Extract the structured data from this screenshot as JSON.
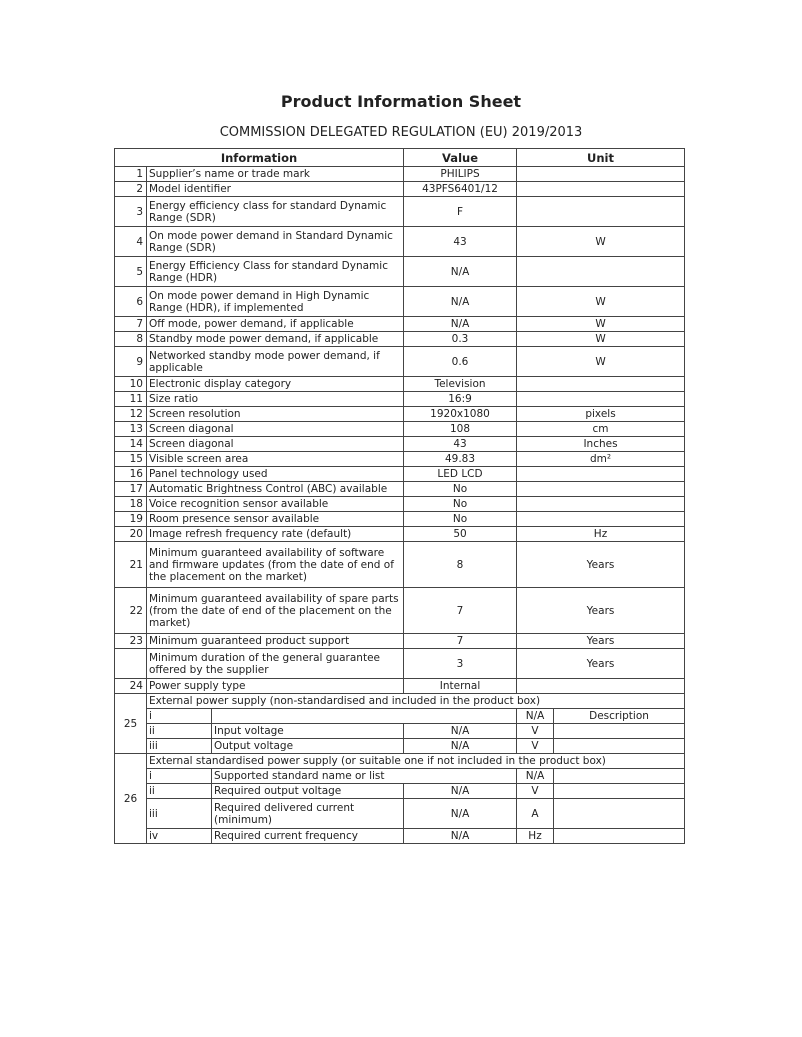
{
  "title": "Product Information Sheet",
  "subtitle": "COMMISSION DELEGATED REGULATION (EU) 2019/2013",
  "headers": {
    "information": "Information",
    "value": "Value",
    "unit": "Unit"
  },
  "rows": [
    {
      "num": "1",
      "overlay": "PHILIPS",
      "label": "Supplier’s name or trade mark",
      "value": "",
      "unit": "",
      "h": "r1"
    },
    {
      "num": "2",
      "overlay": "43PFS6401/12",
      "label": "Model identifier",
      "value": "",
      "unit": "",
      "h": "r1"
    },
    {
      "num": "3",
      "overlay": "",
      "label": "Energy efficiency class for standard Dynamic Range (SDR)",
      "value": "F",
      "unit": "",
      "h": "r2"
    },
    {
      "num": "4",
      "overlay": "43",
      "label": "On mode power demand in Standard Dynamic Range (SDR)",
      "value": "",
      "unit": "W",
      "h": "r2"
    },
    {
      "num": "5",
      "overlay": "N/A",
      "label": "Energy Efficiency Class for standard Dynamic Range (HDR)",
      "value": "",
      "unit": "",
      "h": "r2"
    },
    {
      "num": "6",
      "overlay": "N/A",
      "label": "On mode power demand in High Dynamic Range (HDR), if implemented",
      "value": "",
      "unit": "W",
      "h": "r2"
    },
    {
      "num": "7",
      "overlay": "N/A",
      "label": "Off mode, power demand, if applicable",
      "value": "",
      "unit": "W",
      "h": "r1"
    },
    {
      "num": "8",
      "overlay": "0.3",
      "label": "Standby mode power demand, if applicable",
      "value": "",
      "unit": "W",
      "h": "r1"
    },
    {
      "num": "9",
      "overlay": "0.6",
      "label": "Networked standby mode power demand, if applicable",
      "value": "",
      "unit": "W",
      "h": "r2"
    },
    {
      "num": "10",
      "overlay": "Television",
      "label": "Electronic display category",
      "value": "",
      "unit": "",
      "h": "r1"
    },
    {
      "num": "11",
      "overlay": "16:9",
      "label": "Size ratio",
      "value": "",
      "unit": "",
      "h": "r1"
    },
    {
      "num": "12",
      "overlay": "1920x1080",
      "label": "Screen resolution",
      "value": "",
      "unit": "pixels",
      "h": "r1"
    },
    {
      "num": "13",
      "overlay": "108",
      "label": "Screen diagonal",
      "value": "",
      "unit": "cm",
      "h": "r1"
    },
    {
      "num": "14",
      "overlay": "43",
      "label": "Screen diagonal",
      "value": "",
      "unit": "Inches",
      "h": "r1"
    },
    {
      "num": "15",
      "overlay": "49.83",
      "label": "Visible screen area",
      "value": "",
      "unit": "dm²",
      "h": "r1"
    },
    {
      "num": "16",
      "overlay": "LED LCD",
      "label": "Panel technology used",
      "value": "",
      "unit": "",
      "h": "r1"
    },
    {
      "num": "17",
      "overlay": "No",
      "label": "Automatic Brightness Control (ABC) available",
      "value": "",
      "unit": "",
      "h": "r1"
    },
    {
      "num": "18",
      "overlay": "No",
      "label": "Voice recognition sensor available",
      "value": "",
      "unit": "",
      "h": "r1"
    },
    {
      "num": "19",
      "overlay": "No",
      "label": "Room presence sensor available",
      "value": "",
      "unit": "",
      "h": "r1"
    },
    {
      "num": "20",
      "overlay": "50",
      "label": "Image refresh frequency rate (default)",
      "value": "",
      "unit": "Hz",
      "h": "r1"
    },
    {
      "num": "21",
      "overlay": "",
      "label": "Minimum guaranteed availability of software and firmware updates (from the date of end of the placement on the market)",
      "value": "8",
      "unit": "Years",
      "h": "r3"
    },
    {
      "num": "22",
      "overlay": "",
      "label": "Minimum guaranteed availability of spare parts (from the date of end of the placement on the market)",
      "value": "7",
      "unit": "Years",
      "h": "r3"
    },
    {
      "num": "23",
      "overlay": "",
      "label": "Minimum guaranteed product support",
      "value": "7",
      "unit": "Years",
      "h": "r1"
    },
    {
      "num": "",
      "overlay": "",
      "label": "Minimum duration of the general guarantee offered by the supplier",
      "value": "3",
      "unit": "Years",
      "h": "r2"
    },
    {
      "num": "24",
      "overlay": "Internal",
      "label": "Power supply type",
      "value": "",
      "unit": "",
      "h": "r1"
    }
  ],
  "section25": {
    "num": "25",
    "heading": "External power supply (non-standardised and included in the product box)",
    "row_i": {
      "idx": "i",
      "value": "N/A",
      "unit": "Description"
    },
    "row_ii": {
      "idx": "ii",
      "label": "Input voltage",
      "value": "N/A",
      "unit": "V"
    },
    "row_iii": {
      "idx": "iii",
      "label": "Output voltage",
      "value": "N/A",
      "unit": "V"
    }
  },
  "section26": {
    "num": "26",
    "heading": "External standardised power supply (or suitable one if not included in the product box)",
    "row_i": {
      "idx": "i",
      "label": "Supported standard name or list",
      "value": "N/A"
    },
    "row_ii": {
      "idx": "ii",
      "label": "Required output voltage",
      "value": "N/A",
      "unit": "V"
    },
    "row_iii": {
      "idx": "iii",
      "label": "Required delivered current (minimum)",
      "value": "N/A",
      "unit": "A"
    },
    "row_iv": {
      "idx": "iv",
      "label": "Required current frequency",
      "value": "N/A",
      "unit": "Hz"
    }
  }
}
